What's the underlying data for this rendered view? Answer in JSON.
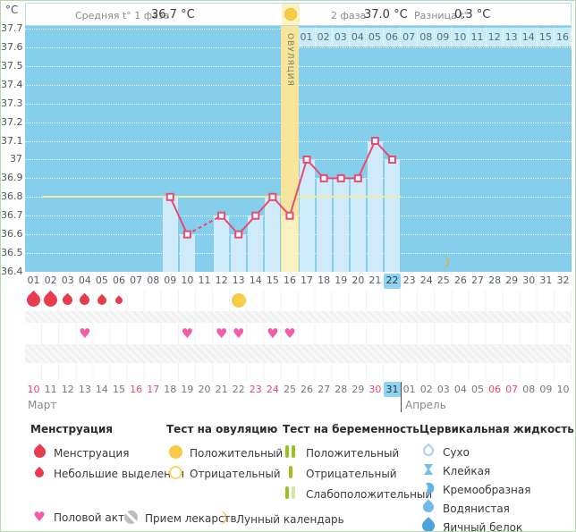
{
  "topbar": {
    "avg_label": "Средняя t° 1 фаза",
    "avg_value": "36.7 °C",
    "phase2_label": "2 фаза",
    "phase2_value": "37.0 °C",
    "diff_label": "Разница t°",
    "diff_value": "0.3 °C"
  },
  "y_axis": {
    "unit": "°C",
    "ticks": [
      "37.7",
      "37.6",
      "37.5",
      "37.4",
      "37.3",
      "37.2",
      "37.1",
      "37",
      "36.9",
      "36.8",
      "36.7",
      "36.6",
      "36.5",
      "36.4"
    ]
  },
  "chart_data": {
    "type": "line",
    "title": "График базальной температуры",
    "ylabel": "°C",
    "ylim": [
      36.4,
      37.7
    ],
    "x_days": [
      9,
      10,
      12,
      13,
      14,
      15,
      16,
      17,
      18,
      19,
      20,
      21,
      22
    ],
    "temps": [
      36.8,
      36.6,
      36.7,
      36.6,
      36.7,
      36.8,
      36.7,
      37.0,
      36.9,
      36.9,
      36.9,
      37.1,
      37.0
    ],
    "missing_days": [
      11
    ],
    "coverline": 36.8,
    "ovulation_day": 16,
    "ovulation_label": "ОВУЛЯЦИЯ",
    "moon_day": 25,
    "moon_temp_level": 36.45,
    "total_days": 32,
    "current_day": 22,
    "phase2_day_labels": [
      "01",
      "02",
      "03",
      "04",
      "05",
      "06",
      "07",
      "08",
      "09",
      "10",
      "11",
      "12",
      "13",
      "14",
      "15",
      "16"
    ],
    "cycle_day_labels": [
      "01",
      "02",
      "03",
      "04",
      "05",
      "06",
      "07",
      "08",
      "09",
      "10",
      "11",
      "12",
      "13",
      "14",
      "15",
      "16",
      "17",
      "18",
      "19",
      "20",
      "21",
      "22",
      "23",
      "24",
      "25",
      "26",
      "27",
      "28",
      "29",
      "30",
      "31",
      "32"
    ],
    "line_color": "#e94a72",
    "coverline_color": "#f1eba2",
    "band_color": "#f6e59a"
  },
  "events": {
    "menstruation": [
      {
        "day": 1,
        "size": 15
      },
      {
        "day": 2,
        "size": 15
      },
      {
        "day": 3,
        "size": 11
      },
      {
        "day": 4,
        "size": 11
      },
      {
        "day": 5,
        "size": 10
      },
      {
        "day": 6,
        "size": 8
      }
    ],
    "ovulation_test_positive_day": 13,
    "intercourse_days": [
      4,
      10,
      12,
      13,
      15,
      16
    ]
  },
  "calendar": {
    "month1_label": "Март",
    "month2_label": "Апрель",
    "dates": [
      {
        "d": "10",
        "red": true
      },
      {
        "d": "11"
      },
      {
        "d": "12"
      },
      {
        "d": "13"
      },
      {
        "d": "14"
      },
      {
        "d": "15"
      },
      {
        "d": "16",
        "red": true
      },
      {
        "d": "17",
        "red": true
      },
      {
        "d": "18"
      },
      {
        "d": "19"
      },
      {
        "d": "20"
      },
      {
        "d": "21"
      },
      {
        "d": "22"
      },
      {
        "d": "23",
        "red": true
      },
      {
        "d": "24",
        "red": true
      },
      {
        "d": "25"
      },
      {
        "d": "26"
      },
      {
        "d": "27"
      },
      {
        "d": "28"
      },
      {
        "d": "29"
      },
      {
        "d": "30",
        "red": true
      },
      {
        "d": "31",
        "today": true
      },
      {
        "d": "01"
      },
      {
        "d": "02"
      },
      {
        "d": "03"
      },
      {
        "d": "04"
      },
      {
        "d": "05"
      },
      {
        "d": "06",
        "red": true
      },
      {
        "d": "07",
        "red": true
      },
      {
        "d": "08"
      },
      {
        "d": "09"
      },
      {
        "d": "10"
      }
    ],
    "month_divider_after_index": 21
  },
  "legend": {
    "columns": [
      {
        "title": "Менструация",
        "items": [
          {
            "icon": "drop-red-large",
            "label": "Менструация"
          },
          {
            "icon": "drop-red-small",
            "label": "Небольшие выделения"
          }
        ]
      },
      {
        "title": "Тест на овуляцию",
        "items": [
          {
            "icon": "circle-yellow",
            "label": "Положительный"
          },
          {
            "icon": "circle-yellow-outline",
            "label": "Отрицательный"
          }
        ]
      },
      {
        "title": "Тест на беременность",
        "items": [
          {
            "icon": "bars-two-green",
            "label": "Положительный"
          },
          {
            "icon": "bar-one-green",
            "label": "Отрицательный"
          },
          {
            "icon": "bars-green-pale",
            "label": "Слабоположительный"
          }
        ]
      },
      {
        "title": "Цервикальная жидкость",
        "items": [
          {
            "icon": "drop-outline",
            "label": "Сухо"
          },
          {
            "icon": "hourglass-blue",
            "label": "Клейкая"
          },
          {
            "icon": "crescent-blue",
            "label": "Кремообразная"
          },
          {
            "icon": "drop-blue",
            "label": "Водянистая"
          },
          {
            "icon": "drop-darkblue",
            "label": "Яичный белок"
          }
        ]
      }
    ],
    "extra": [
      {
        "icon": "heart",
        "label": "Половой акт"
      },
      {
        "icon": "pill",
        "label": "Прием лекарств"
      },
      {
        "icon": "moon",
        "label": "Лунный календарь"
      }
    ]
  }
}
